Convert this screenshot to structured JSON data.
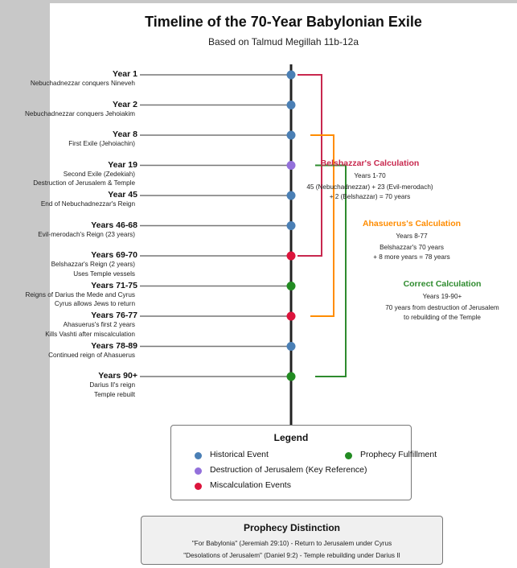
{
  "header": {
    "title": "Timeline of the 70-Year Babylonian Exile",
    "subtitle": "Based on Talmud Megillah 11b-12a"
  },
  "colors": {
    "historical": "#4a7fb5",
    "destruction": "#9370db",
    "miscalculation": "#dc143c",
    "prophecy": "#228b22",
    "belshazzar": "#c8284e",
    "ahasuerus": "#ff8c00",
    "correct": "#2e8b2e",
    "axis": "#222222",
    "connector": "#777777"
  },
  "events": [
    {
      "year": "Year 1",
      "desc": [
        "Nebuchadnezzar conquers Nineveh"
      ],
      "type": "historical"
    },
    {
      "year": "Year 2",
      "desc": [
        "Nebuchadnezzar conquers Jehoiakim"
      ],
      "type": "historical"
    },
    {
      "year": "Year 8",
      "desc": [
        "First Exile (Jehoiachin)"
      ],
      "type": "historical"
    },
    {
      "year": "Year 19",
      "desc": [
        "Second Exile (Zedekiah)",
        "Destruction of Jerusalem & Temple"
      ],
      "type": "destruction"
    },
    {
      "year": "Year 45",
      "desc": [
        "End of Nebuchadnezzar's Reign"
      ],
      "type": "historical"
    },
    {
      "year": "Years 46-68",
      "desc": [
        "Evil-merodach's Reign (23 years)"
      ],
      "type": "historical"
    },
    {
      "year": "Years 69-70",
      "desc": [
        "Belshazzar's Reign (2 years)",
        "Uses Temple vessels"
      ],
      "type": "miscalculation"
    },
    {
      "year": "Years 71-75",
      "desc": [
        "Reigns of Darius the Mede and Cyrus",
        "Cyrus allows Jews to return"
      ],
      "type": "prophecy"
    },
    {
      "year": "Years 76-77",
      "desc": [
        "Ahasuerus's first 2 years",
        "Kills Vashti after miscalculation"
      ],
      "type": "miscalculation"
    },
    {
      "year": "Years 78-89",
      "desc": [
        "Continued reign of Ahasuerus"
      ],
      "type": "historical"
    },
    {
      "year": "Years 90+",
      "desc": [
        "Darius II's reign",
        "Temple rebuilt"
      ],
      "type": "prophecy"
    }
  ],
  "calculations": [
    {
      "title": "Belshazzar's Calculation",
      "range": "Years 1-70",
      "lines": [
        "45 (Nebuchadnezzar) + 23 (Evil-merodach)",
        "+ 2 (Belshazzar) = 70 years"
      ],
      "color": "belshazzar",
      "from_event": 0,
      "to_event": 6
    },
    {
      "title": "Ahasuerus's Calculation",
      "range": "Years 8-77",
      "lines": [
        "Belshazzar's 70 years",
        "+ 8 more years = 78 years"
      ],
      "color": "ahasuerus",
      "from_event": 2,
      "to_event": 8
    },
    {
      "title": "Correct Calculation",
      "range": "Years 19-90+",
      "lines": [
        "70 years from destruction of Jerusalem",
        "to rebuilding of the Temple"
      ],
      "color": "correct",
      "from_event": 3,
      "to_event": 10
    }
  ],
  "legend": {
    "title": "Legend",
    "items": [
      {
        "label": "Historical Event",
        "type": "historical"
      },
      {
        "label": "Prophecy Fulfillment",
        "type": "prophecy"
      },
      {
        "label": "Destruction of Jerusalem (Key Reference)",
        "type": "destruction"
      },
      {
        "label": "Miscalculation Events",
        "type": "miscalculation"
      }
    ]
  },
  "distinction": {
    "title": "Prophecy Distinction",
    "lines": [
      "\"For Babylonia\" (Jeremiah 29:10) - Return to Jerusalem under Cyrus",
      "\"Desolations of Jerusalem\" (Daniel 9:2) - Temple rebuilding under Darius II"
    ]
  }
}
